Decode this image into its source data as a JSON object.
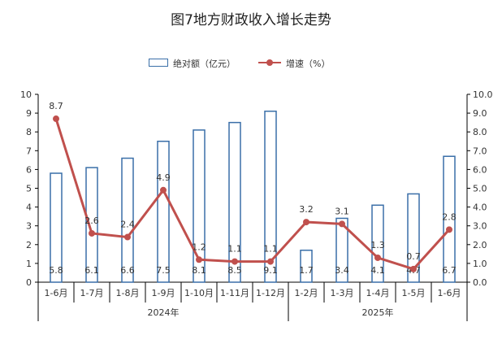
{
  "chart_data": {
    "type": "bar",
    "title": "图7地方财政收入增长走势",
    "categories": [
      "1-6月",
      "1-7月",
      "1-8月",
      "1-9月",
      "1-10月",
      "1-11月",
      "1-12月",
      "1-2月",
      "1-3月",
      "1-4月",
      "1-5月",
      "1-6月"
    ],
    "groups": [
      {
        "label": "2024年",
        "count": 7
      },
      {
        "label": "2025年",
        "count": 5
      }
    ],
    "series": [
      {
        "name": "绝对额（亿元）",
        "type": "bar",
        "axis": "left",
        "color": "#3a6fa8",
        "values": [
          5.8,
          6.1,
          6.6,
          7.5,
          8.1,
          8.5,
          9.1,
          1.7,
          3.4,
          4.1,
          4.7,
          6.7
        ],
        "labels": [
          "5.8",
          "6.1",
          "6.6",
          "7.5",
          "8.1",
          "8.5",
          "9.1",
          "1.7",
          "3.4",
          "4.1",
          "4.7",
          "6.7"
        ]
      },
      {
        "name": "增速（%）",
        "type": "line",
        "axis": "right",
        "color": "#c0504d",
        "values": [
          8.7,
          2.6,
          2.4,
          4.9,
          1.2,
          1.1,
          1.1,
          3.2,
          3.1,
          1.3,
          0.7,
          2.8
        ],
        "labels": [
          "8.7",
          "2.6",
          "2.4",
          "4.9",
          "1.2",
          "1.1",
          "1.1",
          "3.2",
          "3.1",
          "1.3",
          "0.7",
          "2.8"
        ]
      }
    ],
    "y_left": {
      "min": 0,
      "max": 10,
      "ticks": [
        "0",
        "1",
        "2",
        "3",
        "4",
        "5",
        "6",
        "7",
        "8",
        "9",
        "10"
      ]
    },
    "y_right": {
      "min": 0,
      "max": 10,
      "ticks": [
        "0.0",
        "1.0",
        "2.0",
        "3.0",
        "4.0",
        "5.0",
        "6.0",
        "7.0",
        "8.0",
        "9.0",
        "10.0"
      ]
    },
    "grid": false,
    "legend_position": "top"
  }
}
